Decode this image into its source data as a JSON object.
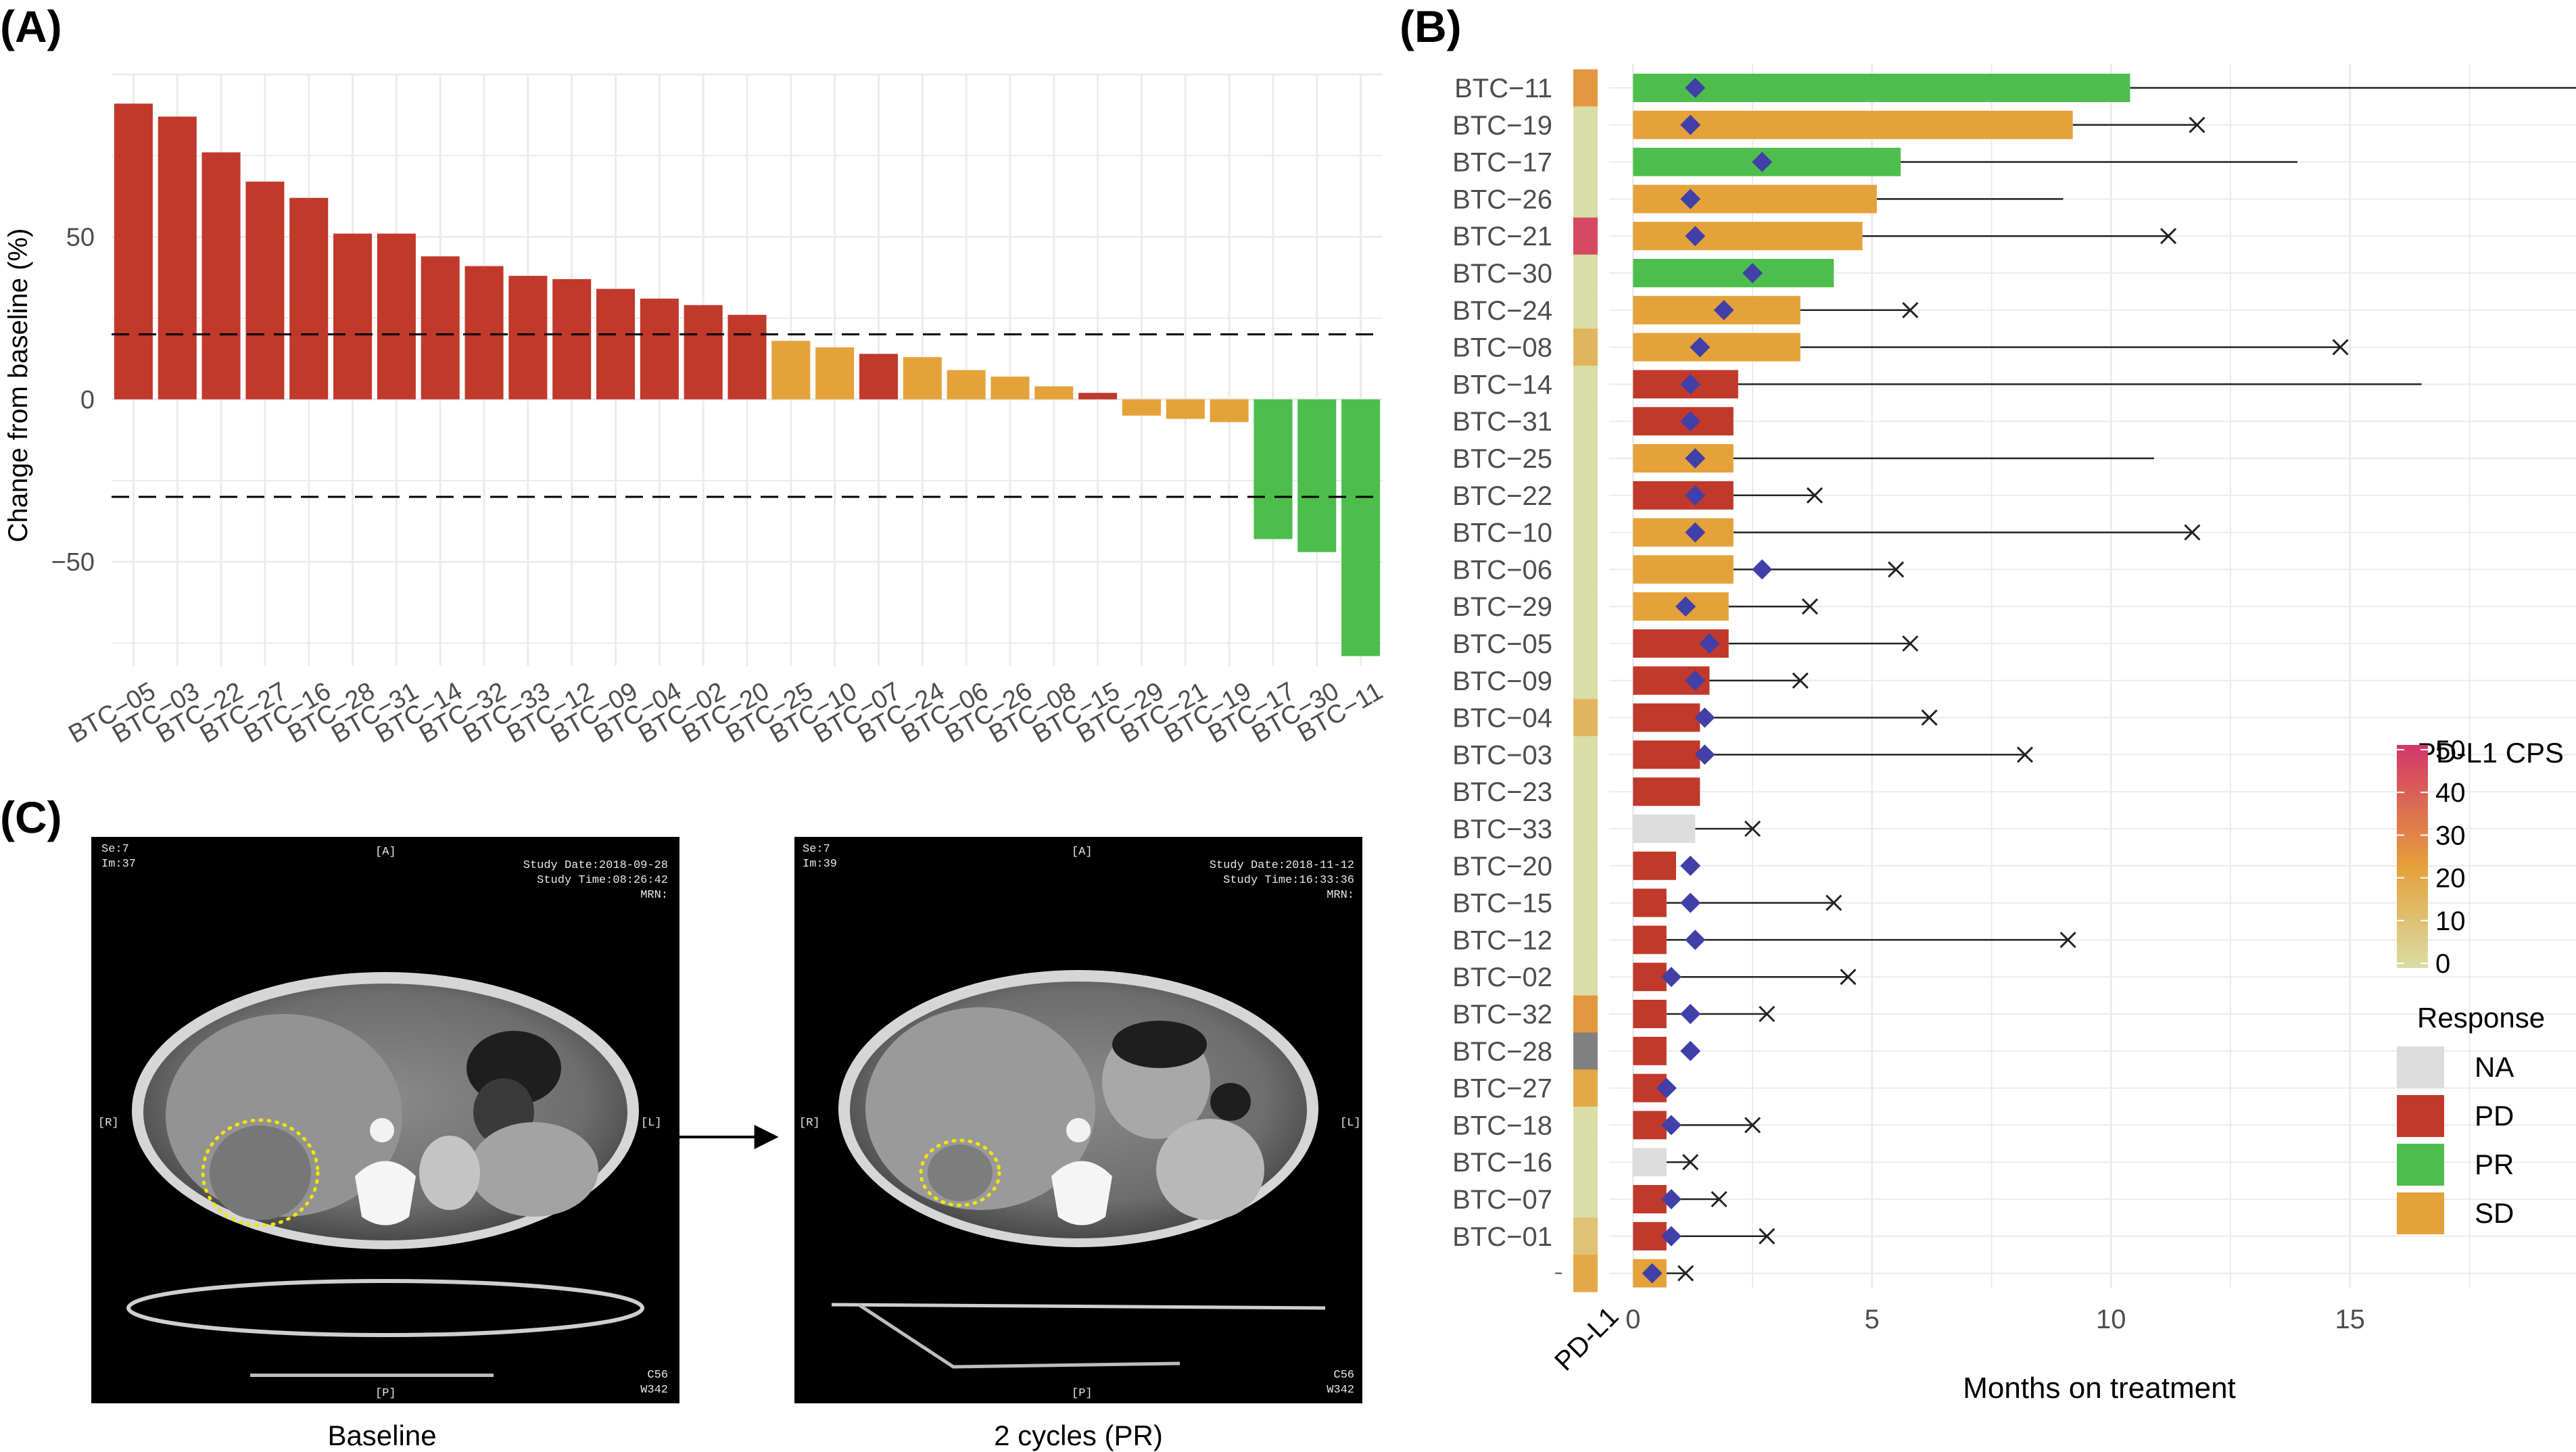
{
  "colors": {
    "PD": "#C0392B",
    "SD": "#E5A13A",
    "PR": "#4DBE4C",
    "NA": "#DCDCDC",
    "marker": "#4040A8",
    "grid": "#EBEBEB"
  },
  "panel_labels": {
    "a": "(A)",
    "b": "(B)",
    "c": "(C)"
  },
  "chart_data": [
    {
      "type": "bar",
      "panel": "(A)",
      "title": "",
      "xlabel": "",
      "ylabel": "Change from baseline (%)",
      "ylim": [
        -82,
        100
      ],
      "yticks": [
        -50,
        0,
        50
      ],
      "thresholds": [
        20,
        -30
      ],
      "categories": [
        "BTC−05",
        "BTC−03",
        "BTC−22",
        "BTC−27",
        "BTC−16",
        "BTC−28",
        "BTC−31",
        "BTC−14",
        "BTC−32",
        "BTC−33",
        "BTC−12",
        "BTC−09",
        "BTC−04",
        "BTC−02",
        "BTC−20",
        "BTC−25",
        "BTC−10",
        "BTC−07",
        "BTC−24",
        "BTC−06",
        "BTC−26",
        "BTC−08",
        "BTC−15",
        "BTC−29",
        "BTC−21",
        "BTC−19",
        "BTC−17",
        "BTC−30",
        "BTC−11"
      ],
      "values": [
        91,
        87,
        76,
        67,
        62,
        51,
        51,
        44,
        41,
        38,
        37,
        34,
        31,
        29,
        26,
        18,
        16,
        14,
        13,
        9,
        7,
        4,
        2,
        -5,
        -6,
        -7,
        -43,
        -47,
        -79
      ],
      "response": [
        "PD",
        "PD",
        "PD",
        "PD",
        "PD",
        "PD",
        "PD",
        "PD",
        "PD",
        "PD",
        "PD",
        "PD",
        "PD",
        "PD",
        "PD",
        "SD",
        "SD",
        "PD",
        "SD",
        "SD",
        "SD",
        "SD",
        "PD",
        "SD",
        "SD",
        "SD",
        "PR",
        "PR",
        "PR"
      ]
    },
    {
      "type": "bar",
      "orientation": "horizontal",
      "panel": "(B)",
      "xlabel": "Months on treatment",
      "xlim": [
        -0.5,
        19.8
      ],
      "xticks": [
        0,
        5,
        10,
        15
      ],
      "pdl1_axis_label": "PD-L1",
      "patients": [
        "BTC−11",
        "BTC−19",
        "BTC−17",
        "BTC−26",
        "BTC−21",
        "BTC−30",
        "BTC−24",
        "BTC−08",
        "BTC−14",
        "BTC−31",
        "BTC−25",
        "BTC−22",
        "BTC−10",
        "BTC−06",
        "BTC−29",
        "BTC−05",
        "BTC−09",
        "BTC−04",
        "BTC−03",
        "BTC−23",
        "BTC−33",
        "BTC−20",
        "BTC−15",
        "BTC−12",
        "BTC−02",
        "BTC−32",
        "BTC−28",
        "BTC−27",
        "BTC−18",
        "BTC−16",
        "BTC−07",
        "BTC−01",
        ""
      ],
      "response": [
        "PR",
        "SD",
        "PR",
        "SD",
        "SD",
        "PR",
        "SD",
        "SD",
        "PD",
        "PD",
        "SD",
        "PD",
        "SD",
        "SD",
        "SD",
        "PD",
        "PD",
        "PD",
        "PD",
        "PD",
        "NA",
        "PD",
        "PD",
        "PD",
        "PD",
        "PD",
        "PD",
        "PD",
        "PD",
        "NA",
        "PD",
        "PD",
        "SD"
      ],
      "treatment_months": [
        10.4,
        9.2,
        5.6,
        5.1,
        4.8,
        4.2,
        3.5,
        3.5,
        2.2,
        2.1,
        2.1,
        2.1,
        2.1,
        2.1,
        2.0,
        2.0,
        1.6,
        1.4,
        1.4,
        1.4,
        1.3,
        0.9,
        0.7,
        0.7,
        0.7,
        0.7,
        0.7,
        0.7,
        0.7,
        0.7,
        0.7,
        0.7,
        0.7
      ],
      "followup_months": [
        19.8,
        11.8,
        13.9,
        9.0,
        11.2,
        null,
        5.8,
        14.8,
        16.5,
        null,
        10.9,
        3.8,
        11.7,
        5.5,
        3.7,
        5.8,
        3.5,
        6.2,
        8.2,
        null,
        2.5,
        null,
        4.2,
        9.1,
        4.5,
        2.8,
        null,
        0.8,
        2.5,
        1.2,
        1.8,
        2.8,
        1.1
      ],
      "followup_event": [
        false,
        true,
        false,
        false,
        true,
        false,
        true,
        true,
        false,
        false,
        false,
        true,
        true,
        true,
        true,
        true,
        true,
        true,
        true,
        false,
        true,
        false,
        true,
        true,
        true,
        true,
        false,
        false,
        true,
        true,
        true,
        true,
        true
      ],
      "response_marker": [
        1.3,
        1.2,
        2.7,
        1.2,
        1.3,
        2.5,
        1.9,
        1.4,
        1.2,
        1.2,
        1.3,
        1.3,
        1.3,
        2.7,
        1.1,
        1.6,
        1.3,
        1.5,
        1.5,
        null,
        null,
        1.2,
        1.2,
        1.3,
        0.8,
        1.2,
        1.2,
        0.7,
        0.8,
        null,
        0.8,
        0.8,
        0.4
      ],
      "pdl1_cps": [
        25,
        0,
        0,
        0,
        45,
        0,
        0,
        15,
        0,
        0,
        0,
        0,
        0,
        0,
        0,
        0,
        0,
        15,
        0,
        0,
        0,
        0,
        0,
        0,
        0,
        25,
        null,
        20,
        0,
        0,
        0,
        10,
        20
      ],
      "legend": {
        "cps_title": "PD-L1 CPS",
        "cps_ticks": [
          50,
          40,
          30,
          20,
          10,
          0
        ],
        "cps_low_color": "#D9DDA6",
        "cps_mid_color": "#E5A13A",
        "cps_high_color": "#D2366A",
        "missing_color": "#808080",
        "response_title": "Response",
        "response_items": [
          "NA",
          "PD",
          "PR",
          "SD"
        ]
      }
    }
  ],
  "panel_c": {
    "scans": [
      {
        "caption": "Baseline",
        "top_center": "[A]",
        "bottom_center": "[P]",
        "left_mid": "[R]",
        "right_mid": "[L]",
        "top_left": [
          "Se:7",
          "Im:37"
        ],
        "top_right": [
          "Study Date:2018-09-28",
          "Study Time:08:26:42",
          "MRN:"
        ],
        "bottom_right": [
          "C56",
          "W342"
        ]
      },
      {
        "caption": "2 cycles (PR)",
        "top_center": "[A]",
        "bottom_center": "[P]",
        "left_mid": "[R]",
        "right_mid": "[L]",
        "top_left": [
          "Se:7",
          "Im:39"
        ],
        "top_right": [
          "Study Date:2018-11-12",
          "Study Time:16:33:36",
          "MRN:"
        ],
        "bottom_right": [
          "C56",
          "W342"
        ]
      }
    ]
  }
}
